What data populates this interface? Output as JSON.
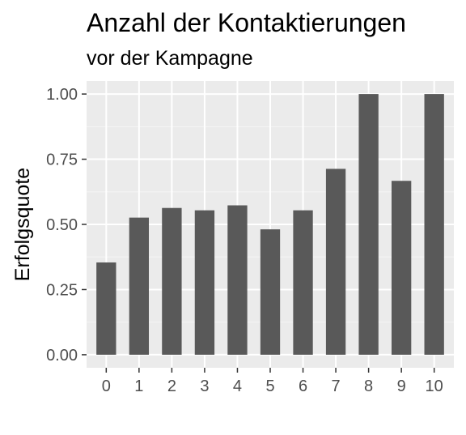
{
  "chart_data": {
    "type": "bar",
    "title": "Anzahl der Kontaktierungen",
    "subtitle": "vor der Kampagne",
    "xlabel": "",
    "ylabel": "Erfolgsquote",
    "categories": [
      "0",
      "1",
      "2",
      "3",
      "4",
      "5",
      "6",
      "7",
      "8",
      "9",
      "10"
    ],
    "values": [
      0.354,
      0.526,
      0.563,
      0.554,
      0.573,
      0.481,
      0.554,
      0.713,
      1.0,
      0.667,
      1.0
    ],
    "ylim": [
      -0.05,
      1.05
    ],
    "yticks": [
      0.0,
      0.25,
      0.5,
      0.75,
      1.0
    ],
    "ytick_labels": [
      "0.00",
      "0.25",
      "0.50",
      "0.75",
      "1.00"
    ],
    "grid": true,
    "legend": "none",
    "colors": {
      "bar": "#595959",
      "panel": "#ebebeb",
      "grid_major": "#ffffff",
      "grid_minor": "#f5f5f5",
      "tick": "#333333"
    }
  }
}
